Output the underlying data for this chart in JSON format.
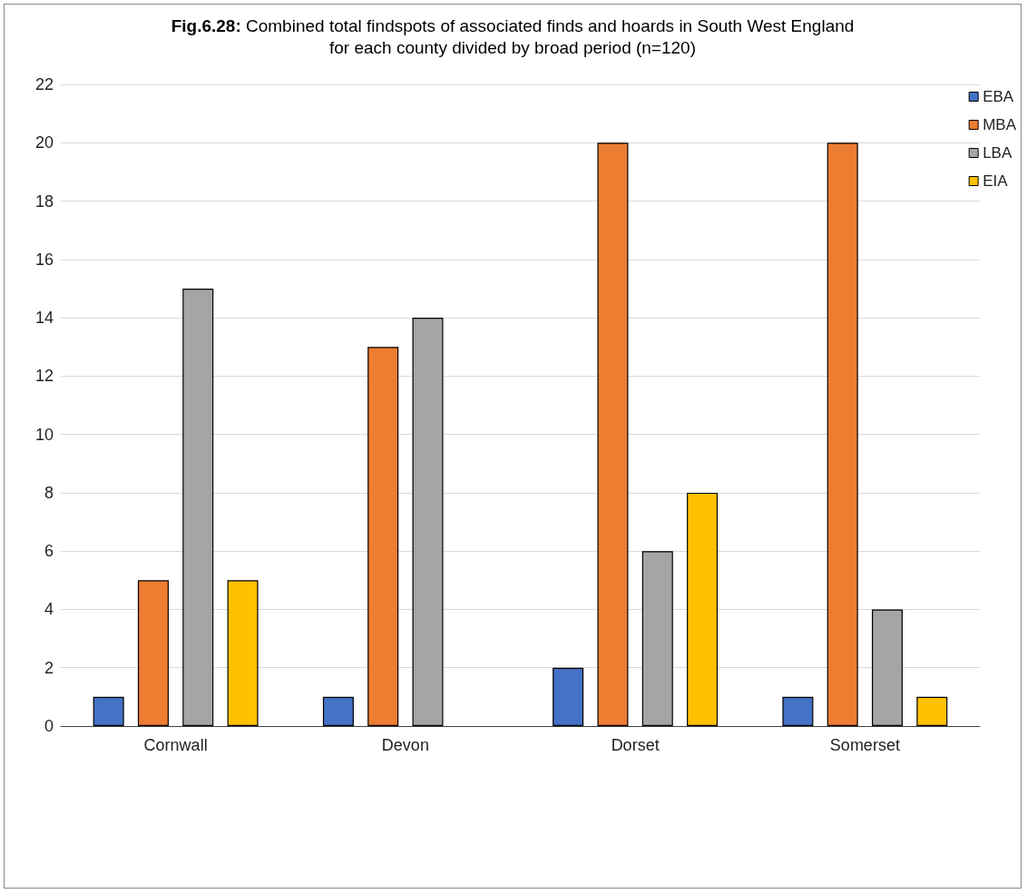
{
  "chart_data": {
    "type": "bar",
    "title": "Fig.6.28: Combined total findspots of associated finds and hoards in South West England for each county divided by broad period (n=120)",
    "categories": [
      "Cornwall",
      "Devon",
      "Dorset",
      "Somerset"
    ],
    "series": [
      {
        "name": "EBA",
        "color": "#4472c4",
        "values": [
          1,
          1,
          2,
          1
        ]
      },
      {
        "name": "MBA",
        "color": "#ed7d31",
        "values": [
          5,
          13,
          20,
          20
        ]
      },
      {
        "name": "LBA",
        "color": "#a5a5a5",
        "values": [
          15,
          14,
          6,
          4
        ]
      },
      {
        "name": "EIA",
        "color": "#ffc000",
        "values": [
          5,
          null,
          8,
          1
        ]
      }
    ],
    "ylim": [
      0,
      22
    ],
    "yticks": [
      0,
      2,
      4,
      6,
      8,
      10,
      12,
      14,
      16,
      18,
      20,
      22
    ],
    "grid": "y",
    "legend": "top right"
  }
}
